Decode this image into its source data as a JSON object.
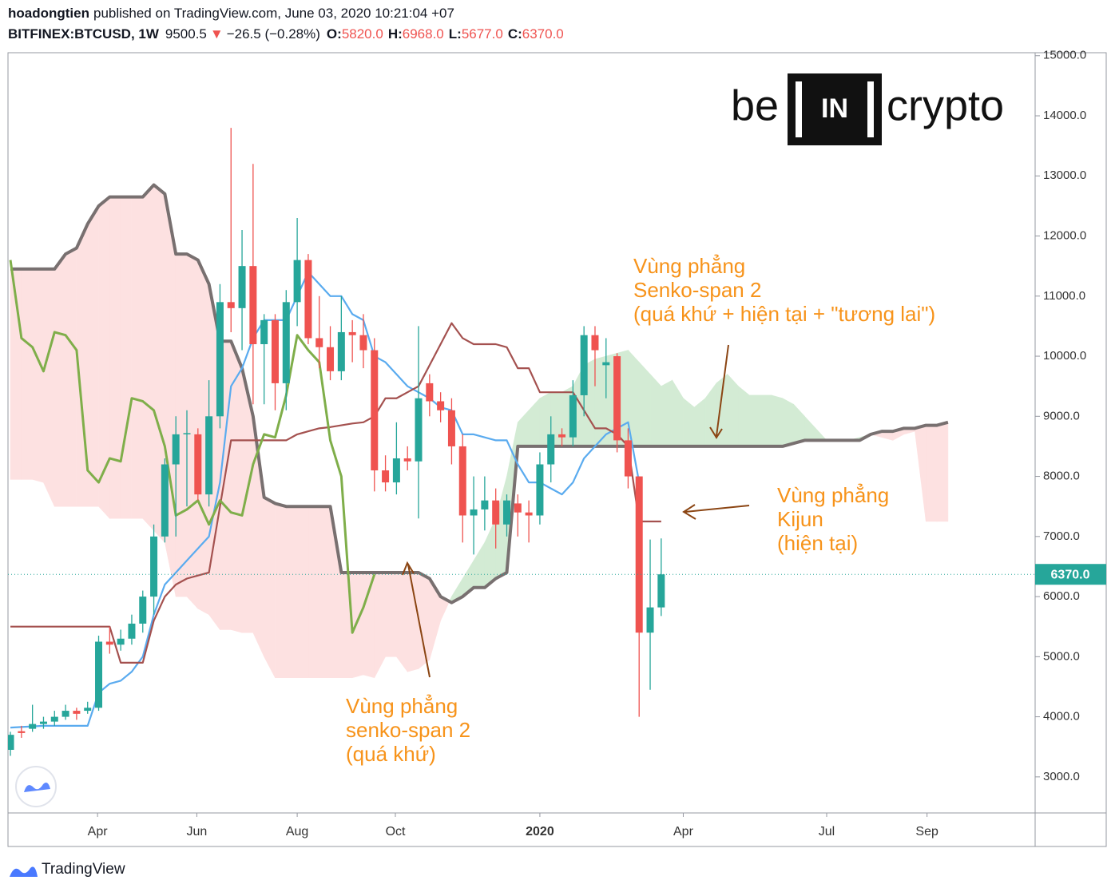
{
  "header": {
    "author": "hoadongtien",
    "published": "published on TradingView.com, June 03, 2020 10:21:04 +07",
    "symbol": "BITFINEX:BTCUSD, 1W",
    "price": "9500.5",
    "change_arrow": "▼",
    "change": "−26.5 (−0.28%)",
    "ohlc": [
      {
        "label": "O:",
        "value": "5820.0"
      },
      {
        "label": "H:",
        "value": "6968.0"
      },
      {
        "label": "L:",
        "value": "5677.0"
      },
      {
        "label": "C:",
        "value": "6370.0"
      }
    ]
  },
  "logo": {
    "left": "be",
    "center": "IN",
    "right": "crypto"
  },
  "footer": "TradingView",
  "chart_data": {
    "type": "candlestick",
    "up_color": "#26a69a",
    "down_color": "#ef5350",
    "xlim": [
      -0.22,
      92.9
    ],
    "ylim": [
      2400,
      15050
    ],
    "xticks": [
      {
        "value": 7.9,
        "label": "Apr"
      },
      {
        "value": 16.9,
        "label": "Jun"
      },
      {
        "value": 26.0,
        "label": "Aug"
      },
      {
        "value": 34.9,
        "label": "Oct"
      },
      {
        "value": 48.0,
        "label": "2020",
        "bold": true
      },
      {
        "value": 61.0,
        "label": "Apr"
      },
      {
        "value": 74.0,
        "label": "Jul"
      },
      {
        "value": 83.1,
        "label": "Sep"
      }
    ],
    "yticks": [
      {
        "value": 3000,
        "label": "3000.0"
      },
      {
        "value": 4000,
        "label": "4000.0"
      },
      {
        "value": 5000,
        "label": "5000.0"
      },
      {
        "value": 6000,
        "label": "6000.0"
      },
      {
        "value": 7000,
        "label": "7000.0"
      },
      {
        "value": 8000,
        "label": "8000.0"
      },
      {
        "value": 9000,
        "label": "9000.0"
      },
      {
        "value": 10000,
        "label": "10000.0"
      },
      {
        "value": 11000,
        "label": "11000.0"
      },
      {
        "value": 12000,
        "label": "12000.0"
      },
      {
        "value": 13000,
        "label": "13000.0"
      },
      {
        "value": 14000,
        "label": "14000.0"
      },
      {
        "value": 15000,
        "label": "15000.0"
      }
    ],
    "last_price": {
      "value": 6370,
      "label": "6370.0",
      "color": "#26a69a"
    },
    "x": [
      0,
      1,
      2,
      3,
      4,
      5,
      6,
      7,
      8,
      9,
      10,
      11,
      12,
      13,
      14,
      15,
      16,
      17,
      18,
      19,
      20,
      21,
      22,
      23,
      24,
      25,
      26,
      27,
      28,
      29,
      30,
      31,
      32,
      33,
      34,
      35,
      36,
      37,
      38,
      39,
      40,
      41,
      42,
      43,
      44,
      45,
      46,
      47,
      48,
      49,
      50,
      51,
      52,
      53,
      54,
      55,
      56,
      57,
      58,
      59
    ],
    "open": [
      3450,
      3760,
      3800,
      3880,
      3920,
      4000,
      4100,
      4100,
      4150,
      5250,
      5200,
      5300,
      5550,
      6000,
      7000,
      8200,
      8700,
      8700,
      7700,
      9000,
      10900,
      10800,
      11500,
      10200,
      10600,
      9550,
      10900,
      11600,
      10300,
      10150,
      9750,
      10400,
      10350,
      10100,
      8100,
      7900,
      8300,
      8250,
      9550,
      9250,
      9100,
      8500,
      7350,
      7450,
      7600,
      7200,
      7550,
      7400,
      7350,
      8200,
      8700,
      8650,
      9350,
      10350,
      9850,
      10000,
      8600,
      8000,
      5400,
      5820
    ],
    "high": [
      3750,
      3850,
      4200,
      4000,
      4100,
      4200,
      4150,
      4250,
      5350,
      5500,
      5450,
      5700,
      6100,
      7200,
      8300,
      9000,
      9100,
      8800,
      9600,
      11200,
      13800,
      12100,
      13200,
      10700,
      10700,
      11100,
      12300,
      11700,
      11000,
      10500,
      11000,
      10600,
      10700,
      10300,
      8350,
      8900,
      8500,
      10500,
      9700,
      9400,
      9300,
      8700,
      8000,
      8000,
      7800,
      7700,
      7700,
      7600,
      8400,
      9000,
      8800,
      9600,
      10500,
      10500,
      10300,
      10050,
      8800,
      8000,
      6950,
      6968
    ],
    "low": [
      3350,
      3650,
      3750,
      3800,
      3850,
      3950,
      3950,
      4050,
      4100,
      5050,
      5100,
      5200,
      5400,
      5700,
      6900,
      7000,
      7500,
      7600,
      7500,
      8800,
      10400,
      10100,
      9200,
      9200,
      9100,
      9100,
      10500,
      10200,
      9800,
      9600,
      9600,
      9900,
      9800,
      7750,
      7750,
      7700,
      8100,
      7300,
      9000,
      8900,
      8200,
      6900,
      6700,
      7100,
      6800,
      7000,
      7000,
      6900,
      7200,
      7900,
      8500,
      8500,
      9000,
      9500,
      9300,
      8400,
      7800,
      4000,
      4450,
      5677
    ],
    "close": [
      3700,
      3730,
      3880,
      3920,
      4000,
      4100,
      4050,
      4150,
      5250,
      5200,
      5300,
      5550,
      6000,
      7000,
      8200,
      8700,
      8720,
      7700,
      9000,
      10900,
      10800,
      11500,
      10200,
      10600,
      9550,
      10900,
      11600,
      10300,
      10150,
      9750,
      10400,
      10350,
      10100,
      8100,
      7900,
      8300,
      8250,
      9300,
      9250,
      9100,
      8500,
      7350,
      7450,
      7600,
      7200,
      7600,
      7400,
      7350,
      8200,
      8700,
      8650,
      9350,
      10350,
      10100,
      9900,
      8600,
      8000,
      5400,
      5820,
      6370
    ],
    "lines": [
      {
        "color": "#5aabef",
        "width": 2.2,
        "values": [
          3820,
          3830,
          3840,
          3850,
          3850,
          3850,
          3850,
          3850,
          4400,
          4550,
          4600,
          4750,
          5000,
          5700,
          6200,
          6400,
          6600,
          6800,
          7000,
          7900,
          9500,
          9800,
          10300,
          10600,
          10600,
          10600,
          11000,
          11400,
          11200,
          11000,
          11000,
          10700,
          10600,
          10000,
          9900,
          9700,
          9500,
          9400,
          9300,
          9150,
          9100,
          8700,
          8700,
          8650,
          8600,
          8600,
          8200,
          7900,
          7900,
          7800,
          7700,
          7900,
          8300,
          8500,
          8700,
          8800,
          8900,
          7900,
          null,
          null
        ]
      },
      {
        "color": "#a4514f",
        "width": 2.2,
        "values": [
          5500,
          5500,
          5500,
          5500,
          5500,
          5500,
          5500,
          5500,
          5500,
          5500,
          4900,
          4900,
          4900,
          5600,
          6000,
          6200,
          6300,
          6350,
          6400,
          7500,
          8600,
          8600,
          8600,
          8600,
          8600,
          8600,
          8700,
          8750,
          8800,
          8820,
          8850,
          8880,
          8900,
          9000,
          9300,
          9300,
          9400,
          9500,
          9850,
          10200,
          10550,
          10300,
          10200,
          10200,
          10200,
          10150,
          9800,
          9800,
          9400,
          9400,
          9400,
          9400,
          9100,
          8800,
          8800,
          8700,
          8500,
          7250,
          7250,
          7250
        ]
      },
      {
        "color": "#7fae4a",
        "width": 3,
        "values": [
          11600,
          10300,
          10150,
          9750,
          10400,
          10350,
          10100,
          8100,
          7900,
          8300,
          8250,
          9300,
          9250,
          9100,
          8500,
          7350,
          7450,
          7600,
          7200,
          7600,
          7400,
          7350,
          8200,
          8700,
          8650,
          9350,
          10350,
          10100,
          9900,
          8600,
          8000,
          5400,
          5820,
          6370,
          null,
          null,
          null,
          null,
          null,
          null,
          null,
          null,
          null,
          null,
          null,
          null,
          null,
          null,
          null,
          null,
          null,
          null,
          null,
          null,
          null,
          null,
          null,
          null,
          null,
          null
        ]
      }
    ],
    "cloud": {
      "up_color": "#d3ebd4",
      "down_color": "#fde1e1",
      "x": [
        0,
        1,
        2,
        3,
        4,
        5,
        6,
        7,
        8,
        9,
        10,
        11,
        12,
        13,
        14,
        15,
        16,
        17,
        18,
        19,
        20,
        21,
        22,
        23,
        24,
        25,
        26,
        27,
        28,
        29,
        30,
        31,
        32,
        33,
        34,
        35,
        36,
        37,
        38,
        39,
        40,
        41,
        42,
        43,
        44,
        45,
        46,
        47,
        48,
        49,
        50,
        51,
        52,
        53,
        54,
        55,
        56,
        57,
        58,
        59,
        60,
        61,
        62,
        63,
        64,
        65,
        66,
        67,
        68,
        69,
        70,
        71,
        72,
        73,
        74,
        75,
        76,
        77,
        78,
        79,
        80,
        81,
        82,
        83,
        84,
        85
      ],
      "span_a": {
        "values": [
          7950,
          7950,
          7950,
          7900,
          7500,
          7500,
          7500,
          7500,
          7500,
          7300,
          7300,
          7300,
          7300,
          7100,
          6900,
          6000,
          6000,
          5800,
          5700,
          5450,
          5450,
          5400,
          5400,
          5000,
          4650,
          4650,
          4650,
          4650,
          4650,
          4650,
          4650,
          4650,
          4700,
          4650,
          5000,
          5000,
          4750,
          4800,
          4950,
          5600,
          6000,
          6300,
          6600,
          6900,
          7300,
          8000,
          8900,
          9100,
          9300,
          9400,
          9400,
          9500,
          9850,
          9950,
          10000,
          10050,
          10100,
          9900,
          9700,
          9500,
          9600,
          9300,
          9150,
          9300,
          9550,
          9700,
          9500,
          9350,
          9350,
          9350,
          9300,
          9200,
          9000,
          8800,
          8600,
          8600,
          8600,
          8650,
          8700,
          8650,
          8600,
          8700,
          8750,
          7250,
          7250,
          7250
        ]
      },
      "span_b": {
        "color": "#787070",
        "width": 4,
        "values": [
          11450,
          11450,
          11450,
          11450,
          11450,
          11700,
          11800,
          12200,
          12500,
          12650,
          12650,
          12650,
          12650,
          12850,
          12700,
          11700,
          11700,
          11600,
          11200,
          10250,
          10250,
          9800,
          9000,
          7650,
          7550,
          7500,
          7500,
          7500,
          7500,
          7500,
          6400,
          6400,
          6400,
          6400,
          6400,
          6400,
          6400,
          6400,
          6300,
          6000,
          5900,
          6000,
          6150,
          6150,
          6300,
          6400,
          8500,
          8500,
          8500,
          8500,
          8500,
          8500,
          8500,
          8500,
          8500,
          8500,
          8500,
          8500,
          8500,
          8500,
          8500,
          8500,
          8500,
          8500,
          8500,
          8500,
          8500,
          8500,
          8500,
          8500,
          8500,
          8550,
          8600,
          8600,
          8600,
          8600,
          8600,
          8600,
          8700,
          8750,
          8750,
          8800,
          8800,
          8850,
          8850,
          8900
        ]
      }
    },
    "annotations": [
      {
        "lines": [
          "Vùng phẳng",
          "Senko-span 2",
          "(quá khứ + hiện tại + \"tương lai\")"
        ]
      },
      {
        "lines": [
          "Vùng phẳng",
          "Kijun",
          "(hiện tại)"
        ]
      },
      {
        "lines": [
          "Vùng phẳng",
          "senko-span 2",
          "(quá khứ)"
        ]
      }
    ]
  }
}
